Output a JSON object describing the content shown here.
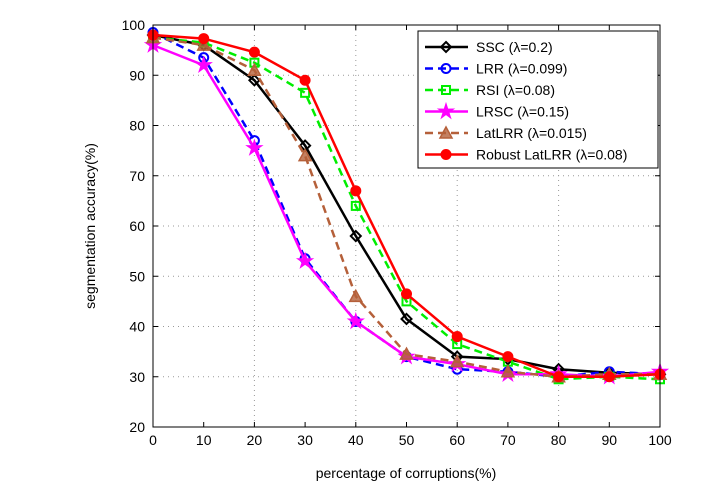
{
  "chart_data": {
    "type": "line",
    "title": "",
    "xlabel": "percentage of corruptions(%)",
    "ylabel": "segmentation accuracy(%)",
    "xlim": [
      0,
      100
    ],
    "ylim": [
      20,
      100
    ],
    "xticks": [
      0,
      10,
      20,
      30,
      40,
      50,
      60,
      70,
      80,
      90,
      100
    ],
    "yticks": [
      20,
      30,
      40,
      50,
      60,
      70,
      80,
      90,
      100
    ],
    "grid": true,
    "legend_position": "top-right",
    "x": [
      0,
      10,
      20,
      30,
      40,
      50,
      60,
      70,
      80,
      90,
      100
    ],
    "series": [
      {
        "name": "SSC (λ=0.2)",
        "color": "#000000",
        "dash": false,
        "marker": "diamond",
        "values": [
          98,
          96,
          89,
          76,
          58,
          41.5,
          34,
          33.5,
          31.5,
          30.8,
          30.5
        ]
      },
      {
        "name": "LRR (λ=0.099)",
        "color": "#0000ff",
        "dash": true,
        "marker": "circle",
        "values": [
          98.5,
          93.5,
          77,
          53.5,
          41,
          34,
          31.5,
          31,
          30,
          31,
          30.5
        ]
      },
      {
        "name": "RSI (λ=0.08)",
        "color": "#00ee00",
        "dash": true,
        "marker": "square",
        "values": [
          97.5,
          96.5,
          92.5,
          86.5,
          64,
          45,
          36.5,
          33,
          29.5,
          30,
          29.5
        ]
      },
      {
        "name": "LRSC (λ=0.15)",
        "color": "#ff00ff",
        "dash": false,
        "marker": "star",
        "values": [
          96,
          92,
          75.5,
          53,
          41,
          34,
          32.5,
          30.5,
          30.5,
          30,
          31
        ]
      },
      {
        "name": "LatLRR (λ=0.015)",
        "color": "#b5603a",
        "dash": true,
        "marker": "triangle",
        "values": [
          97.5,
          96,
          91,
          74,
          46,
          34.5,
          33,
          31,
          30,
          30.5,
          30.5
        ]
      },
      {
        "name": "Robust LatLRR (λ=0.08)",
        "color": "#ff0000",
        "dash": false,
        "marker": "dot",
        "values": [
          98,
          97.3,
          94.6,
          89,
          67,
          46.5,
          38,
          34,
          30,
          30,
          30.5
        ]
      }
    ]
  }
}
